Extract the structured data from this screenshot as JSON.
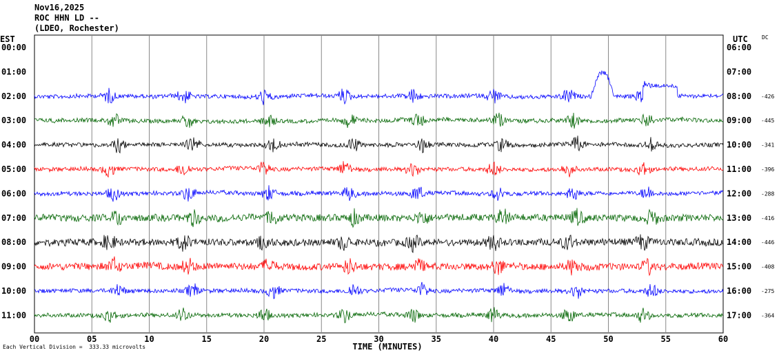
{
  "header": {
    "line1": "Nov16,2025",
    "line2": "ROC HHN LD --",
    "line3": "(LDEO, Rochester)"
  },
  "left_axis_title": "EST",
  "right_axis_title": "UTC",
  "dc_title": "DC",
  "footer": "Each Vertical Division =  333.33 microvolts",
  "colors": {
    "blue": "#0000ff",
    "green": "#006400",
    "black": "#000000",
    "red": "#ff0000",
    "grid": "#888888"
  },
  "chart_data": {
    "type": "line",
    "xlabel": "TIME (MINUTES)",
    "xlim": [
      0,
      60
    ],
    "x_ticks": [
      "00",
      "05",
      "10",
      "15",
      "20",
      "25",
      "30",
      "35",
      "40",
      "45",
      "50",
      "55",
      "60"
    ],
    "est_labels": [
      "00:00",
      "01:00",
      "02:00",
      "03:00",
      "04:00",
      "05:00",
      "06:00",
      "07:00",
      "08:00",
      "09:00",
      "10:00",
      "11:00"
    ],
    "utc_labels": [
      "06:00",
      "07:00",
      "08:00",
      "09:00",
      "10:00",
      "11:00",
      "12:00",
      "13:00",
      "14:00",
      "15:00",
      "16:00",
      "17:00"
    ],
    "traces": [
      {
        "est": "02:00",
        "utc": "08:00",
        "color": "blue",
        "dc": "-426"
      },
      {
        "est": "03:00",
        "utc": "09:00",
        "color": "green",
        "dc": "-445"
      },
      {
        "est": "04:00",
        "utc": "10:00",
        "color": "black",
        "dc": "-341"
      },
      {
        "est": "05:00",
        "utc": "11:00",
        "color": "red",
        "dc": "-396"
      },
      {
        "est": "06:00",
        "utc": "12:00",
        "color": "blue",
        "dc": "-288"
      },
      {
        "est": "07:00",
        "utc": "13:00",
        "color": "green",
        "dc": "-416"
      },
      {
        "est": "08:00",
        "utc": "14:00",
        "color": "black",
        "dc": "-446"
      },
      {
        "est": "09:00",
        "utc": "15:00",
        "color": "red",
        "dc": "-408"
      },
      {
        "est": "10:00",
        "utc": "16:00",
        "color": "blue",
        "dc": "-275"
      },
      {
        "est": "11:00",
        "utc": "17:00",
        "color": "green",
        "dc": "-364"
      }
    ]
  }
}
